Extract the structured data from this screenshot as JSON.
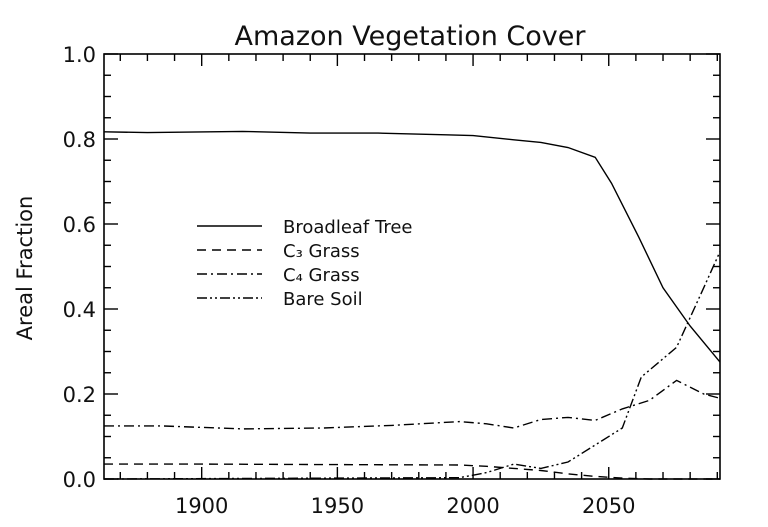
{
  "chart_data": {
    "type": "line",
    "title": "Amazon Vegetation Cover",
    "xlabel": "",
    "ylabel": "Areal Fraction",
    "xlim": [
      1864,
      2091
    ],
    "ylim": [
      0,
      1.0
    ],
    "xticks": [
      "1900",
      "1950",
      "2000",
      "2050"
    ],
    "yticks": [
      "0.0",
      "0.2",
      "0.4",
      "0.6",
      "0.8",
      "1.0"
    ],
    "grid": false,
    "legend_position": "center-left",
    "series": [
      {
        "name": "Broadleaf Tree",
        "dash": "solid",
        "x": [
          1864,
          1880,
          1915,
          1940,
          1965,
          1990,
          2000,
          2015,
          2025,
          2035,
          2045,
          2051,
          2061,
          2070,
          2080,
          2091
        ],
        "y": [
          0.817,
          0.815,
          0.818,
          0.814,
          0.814,
          0.81,
          0.808,
          0.798,
          0.792,
          0.78,
          0.757,
          0.696,
          0.57,
          0.45,
          0.36,
          0.275
        ]
      },
      {
        "name": "C₃ Grass",
        "dash": "dashed",
        "x": [
          1864,
          1900,
          1950,
          1995,
          2005,
          2015,
          2025,
          2035,
          2045,
          2055,
          2065,
          2091
        ],
        "y": [
          0.035,
          0.035,
          0.034,
          0.033,
          0.03,
          0.025,
          0.02,
          0.012,
          0.006,
          0.002,
          0.0,
          0.0
        ]
      },
      {
        "name": "C₄ Grass",
        "dash": "dashdot",
        "x": [
          1864,
          1885,
          1915,
          1945,
          1970,
          1995,
          2005,
          2015,
          2025,
          2035,
          2045,
          2055,
          2065,
          2075,
          2085,
          2091
        ],
        "y": [
          0.125,
          0.125,
          0.118,
          0.12,
          0.126,
          0.135,
          0.13,
          0.12,
          0.14,
          0.145,
          0.138,
          0.165,
          0.185,
          0.232,
          0.2,
          0.19
        ]
      },
      {
        "name": "Bare Soil",
        "dash": "dashdotdot",
        "x": [
          1864,
          1950,
          1995,
          2005,
          2015,
          2025,
          2035,
          2045,
          2055,
          2062,
          2075,
          2085,
          2091
        ],
        "y": [
          0.0,
          0.002,
          0.003,
          0.015,
          0.035,
          0.025,
          0.04,
          0.08,
          0.12,
          0.24,
          0.31,
          0.45,
          0.535
        ]
      }
    ]
  }
}
